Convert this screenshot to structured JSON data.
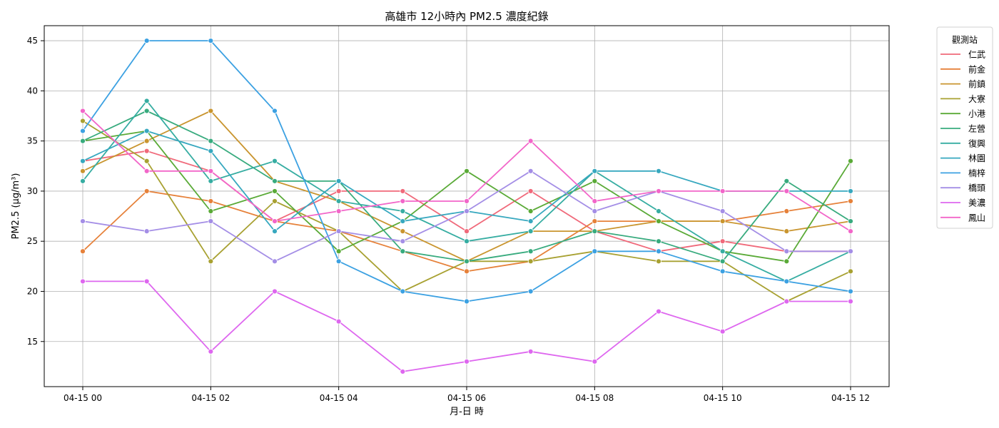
{
  "chart_data": {
    "type": "line",
    "title": "高雄市 12小時內 PM2.5 濃度紀錄",
    "xlabel": "月-日 時",
    "ylabel": "PM2.5 (μg/m³)",
    "x": [
      "04-15 00",
      "04-15 01",
      "04-15 02",
      "04-15 03",
      "04-15 04",
      "04-15 05",
      "04-15 06",
      "04-15 07",
      "04-15 08",
      "04-15 09",
      "04-15 10",
      "04-15 11",
      "04-15 12"
    ],
    "x_tick_labels": [
      "04-15 00",
      "04-15 02",
      "04-15 04",
      "04-15 06",
      "04-15 08",
      "04-15 10",
      "04-15 12"
    ],
    "y_ticks": [
      15,
      20,
      25,
      30,
      35,
      40,
      45
    ],
    "ylim": [
      10.5,
      46.5
    ],
    "grid": true,
    "legend": {
      "title": "觀測站",
      "placement": "outside-top-right"
    },
    "series": [
      {
        "name": "仁武",
        "color": "#f0697a",
        "values": [
          33,
          34,
          32,
          27,
          30,
          30,
          26,
          30,
          26,
          24,
          25,
          24,
          24
        ]
      },
      {
        "name": "前金",
        "color": "#e6813a",
        "values": [
          24,
          30,
          29,
          27,
          26,
          24,
          22,
          23,
          27,
          27,
          27,
          28,
          29
        ]
      },
      {
        "name": "前鎮",
        "color": "#c9952f",
        "values": [
          32,
          35,
          38,
          31,
          29,
          26,
          23,
          26,
          26,
          27,
          27,
          26,
          27
        ]
      },
      {
        "name": "大寮",
        "color": "#a8a132",
        "values": [
          37,
          33,
          23,
          29,
          26,
          20,
          23,
          23,
          24,
          23,
          23,
          19,
          22
        ]
      },
      {
        "name": "小港",
        "color": "#5aaa37",
        "values": [
          35,
          36,
          28,
          30,
          24,
          27,
          32,
          28,
          31,
          27,
          24,
          23,
          33
        ]
      },
      {
        "name": "左營",
        "color": "#38ab7e",
        "values": [
          35,
          38,
          35,
          31,
          31,
          24,
          23,
          24,
          26,
          25,
          23,
          31,
          27
        ]
      },
      {
        "name": "復興",
        "color": "#36ada2",
        "values": [
          31,
          39,
          31,
          33,
          29,
          28,
          25,
          26,
          32,
          28,
          24,
          21,
          24
        ]
      },
      {
        "name": "林園",
        "color": "#37a8bf",
        "values": [
          33,
          36,
          34,
          26,
          31,
          27,
          28,
          27,
          32,
          32,
          30,
          30,
          30
        ]
      },
      {
        "name": "楠梓",
        "color": "#3ca1e2",
        "values": [
          36,
          45,
          45,
          38,
          23,
          20,
          19,
          20,
          24,
          24,
          22,
          21,
          20
        ]
      },
      {
        "name": "橋頭",
        "color": "#a48ee6",
        "values": [
          27,
          26,
          27,
          23,
          26,
          25,
          28,
          32,
          28,
          30,
          28,
          24,
          24
        ]
      },
      {
        "name": "美濃",
        "color": "#de67ef",
        "values": [
          21,
          21,
          14,
          20,
          17,
          12,
          13,
          14,
          13,
          18,
          16,
          19,
          19
        ]
      },
      {
        "name": "鳳山",
        "color": "#f266c9",
        "values": [
          38,
          32,
          32,
          27,
          28,
          29,
          29,
          35,
          29,
          30,
          30,
          30,
          26
        ]
      }
    ]
  }
}
